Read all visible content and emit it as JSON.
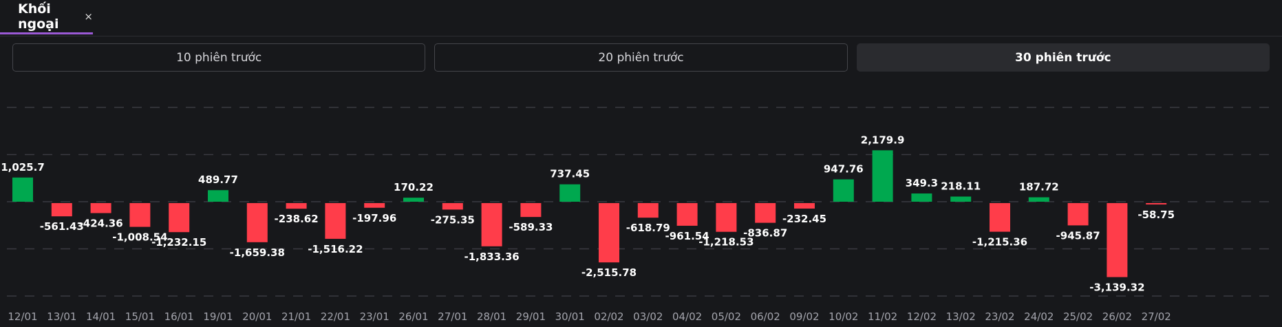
{
  "tab": {
    "label": "Khối ngoại",
    "close": "×"
  },
  "periods": [
    {
      "label": "10 phiên trước",
      "active": false
    },
    {
      "label": "20 phiên trước",
      "active": false
    },
    {
      "label": "30 phiên trước",
      "active": true
    }
  ],
  "colors": {
    "positive": "#00a84f",
    "negative": "#ff3d4a",
    "grid": "#3a3b42"
  },
  "chart_data": {
    "type": "bar",
    "title": "",
    "xlabel": "",
    "ylabel": "",
    "ylim": [
      -4000,
      4000
    ],
    "gridlines": [
      4000,
      2000,
      0,
      -2000,
      -4000
    ],
    "grid": true,
    "categories": [
      "12/01",
      "13/01",
      "14/01",
      "15/01",
      "16/01",
      "19/01",
      "20/01",
      "21/01",
      "22/01",
      "23/01",
      "26/01",
      "27/01",
      "28/01",
      "29/01",
      "30/01",
      "02/02",
      "03/02",
      "04/02",
      "05/02",
      "06/02",
      "09/02",
      "10/02",
      "11/02",
      "12/02",
      "13/02",
      "23/02",
      "24/02",
      "25/02",
      "26/02",
      "27/02"
    ],
    "values": [
      1025.7,
      -561.43,
      -424.36,
      -1008.54,
      -1232.15,
      489.77,
      -1659.38,
      -238.62,
      -1516.22,
      -197.96,
      170.22,
      -275.35,
      -1833.36,
      -589.33,
      737.45,
      -2515.78,
      -618.79,
      -961.54,
      -1218.53,
      -836.87,
      -232.45,
      947.76,
      2179.9,
      349.3,
      218.11,
      -1215.36,
      187.72,
      -945.87,
      -3139.32,
      -58.75
    ],
    "labels": [
      "1,025.7",
      "-561.43",
      "-424.36",
      "-1,008.54",
      "-1,232.15",
      "489.77",
      "-1,659.38",
      "-238.62",
      "-1,516.22",
      "-197.96",
      "170.22",
      "-275.35",
      "-1,833.36",
      "-589.33",
      "737.45",
      "-2,515.78",
      "-618.79",
      "-961.54",
      "-1,218.53",
      "-836.87",
      "-232.45",
      "947.76",
      "2,179.9",
      "349.3",
      "218.11",
      "-1,215.36",
      "187.72",
      "-945.87",
      "-3,139.32",
      "-58.75"
    ]
  }
}
